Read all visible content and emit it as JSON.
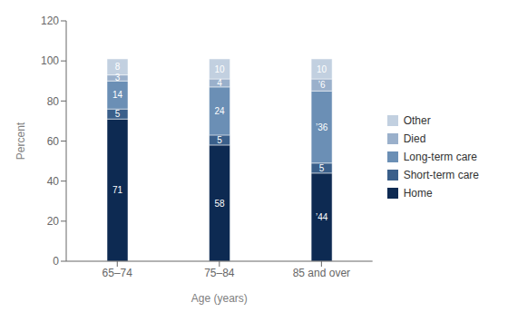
{
  "chart_data": {
    "type": "bar",
    "stacked": true,
    "categories": [
      "65–74",
      "75–84",
      "85 and over"
    ],
    "series": [
      {
        "name": "Home",
        "color": "#0d2a52",
        "values": [
          71,
          58,
          44
        ],
        "value_labels": [
          "71",
          "58",
          "’44"
        ]
      },
      {
        "name": "Short-term care",
        "color": "#3a5f8a",
        "values": [
          5,
          5,
          5
        ],
        "value_labels": [
          "5",
          "5",
          "5"
        ]
      },
      {
        "name": "Long-term care",
        "color": "#6b8fb5",
        "values": [
          14,
          24,
          36
        ],
        "value_labels": [
          "14",
          "24",
          "’36"
        ]
      },
      {
        "name": "Died",
        "color": "#9ab0cb",
        "values": [
          3,
          4,
          6
        ],
        "value_labels": [
          "3",
          "4",
          "’6"
        ]
      },
      {
        "name": "Other",
        "color": "#c2d0e0",
        "values": [
          8,
          10,
          10
        ],
        "value_labels": [
          "8",
          "10",
          "10"
        ]
      }
    ],
    "xlabel": "Age (years)",
    "ylabel": "Percent",
    "ylim": [
      0,
      120
    ],
    "yticks": [
      0,
      20,
      40,
      60,
      80,
      100,
      120
    ],
    "data_labels": true,
    "legend": "right",
    "grid": false
  }
}
